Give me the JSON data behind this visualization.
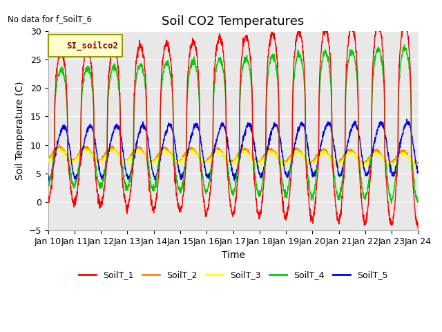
{
  "title": "Soil CO2 Temperatures",
  "no_data_text": "No data for f_SoilT_6",
  "xlabel": "Time",
  "ylabel": "Soil Temperature (C)",
  "ylim": [
    -5,
    30
  ],
  "yticks": [
    -5,
    0,
    5,
    10,
    15,
    20,
    25,
    30
  ],
  "xlim": [
    0,
    14
  ],
  "xtick_labels": [
    "Jan 10",
    "Jan 11",
    "Jan 12",
    "Jan 13",
    "Jan 14",
    "Jan 15",
    "Jan 16",
    "Jan 17",
    "Jan 18",
    "Jan 19",
    "Jan 20",
    "Jan 21",
    "Jan 22",
    "Jan 23",
    "Jan 24"
  ],
  "legend_label": "SI_soilco2",
  "series_labels": [
    "SoilT_1",
    "SoilT_2",
    "SoilT_3",
    "SoilT_4",
    "SoilT_5"
  ],
  "series_colors": [
    "#ff0000",
    "#ff8800",
    "#ffff00",
    "#00cc00",
    "#0000ee"
  ],
  "fig_bg_color": "#ffffff",
  "plot_bg_color": "#e8e8e8",
  "plot_bg_inner_color": "#f0f0f0",
  "title_fontsize": 13,
  "axis_label_fontsize": 10,
  "tick_fontsize": 9,
  "gridline_color": "#ffffff"
}
